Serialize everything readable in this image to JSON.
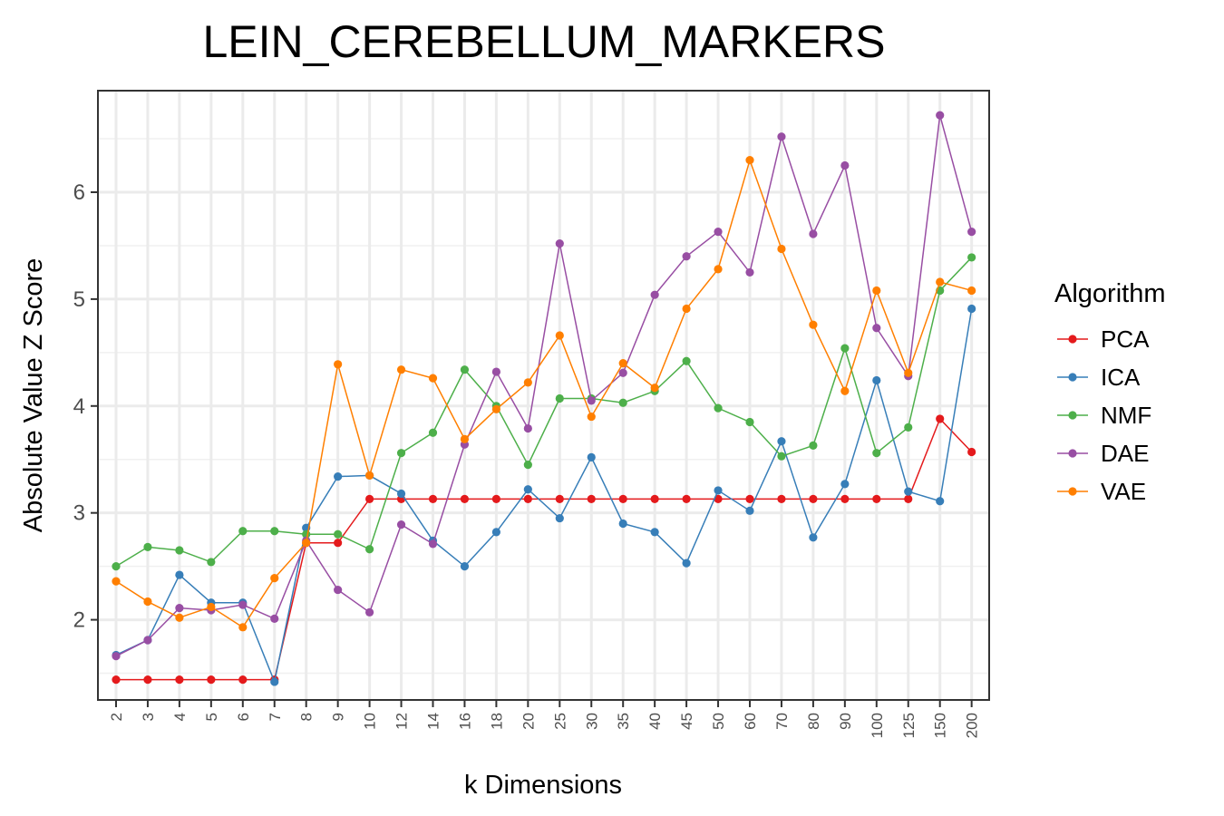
{
  "chart_data": {
    "type": "line",
    "title": "LEIN_CEREBELLUM_MARKERS",
    "xlabel": "k Dimensions",
    "ylabel": "Absolute Value Z Score",
    "categories": [
      "2",
      "3",
      "4",
      "5",
      "6",
      "7",
      "8",
      "9",
      "10",
      "12",
      "14",
      "16",
      "18",
      "20",
      "25",
      "30",
      "35",
      "40",
      "45",
      "50",
      "60",
      "70",
      "80",
      "90",
      "100",
      "125",
      "150",
      "200"
    ],
    "ylim": [
      1.25,
      6.95
    ],
    "yticks": [
      2,
      3,
      4,
      5,
      6
    ],
    "grid": true,
    "legend": {
      "title": "Algorithm",
      "position": "right"
    },
    "series": [
      {
        "name": "PCA",
        "color": "#e41a1c",
        "values": [
          1.44,
          1.44,
          1.44,
          1.44,
          1.44,
          1.44,
          2.72,
          2.72,
          3.13,
          3.13,
          3.13,
          3.13,
          3.13,
          3.13,
          3.13,
          3.13,
          3.13,
          3.13,
          3.13,
          3.13,
          3.13,
          3.13,
          3.13,
          3.13,
          3.13,
          3.13,
          3.88,
          3.57
        ]
      },
      {
        "name": "ICA",
        "color": "#377eb8",
        "values": [
          1.67,
          1.81,
          2.42,
          2.16,
          2.16,
          1.42,
          2.86,
          3.34,
          3.35,
          3.18,
          2.74,
          2.5,
          2.82,
          3.22,
          2.95,
          3.52,
          2.9,
          2.82,
          2.53,
          3.21,
          3.02,
          3.67,
          2.77,
          3.27,
          4.24,
          3.2,
          3.11,
          4.91
        ]
      },
      {
        "name": "NMF",
        "color": "#4daf4a",
        "values": [
          2.5,
          2.68,
          2.65,
          2.54,
          2.83,
          2.83,
          2.8,
          2.8,
          2.66,
          3.56,
          3.75,
          4.34,
          4.0,
          3.45,
          4.07,
          4.07,
          4.03,
          4.14,
          4.42,
          3.98,
          3.85,
          3.53,
          3.63,
          4.54,
          3.56,
          3.8,
          5.08,
          5.39
        ]
      },
      {
        "name": "DAE",
        "color": "#984ea3",
        "values": [
          1.66,
          1.81,
          2.11,
          2.09,
          2.14,
          2.01,
          2.74,
          2.28,
          2.07,
          2.89,
          2.71,
          3.64,
          4.32,
          3.79,
          5.52,
          4.05,
          4.31,
          5.04,
          5.4,
          5.63,
          5.25,
          6.52,
          5.61,
          6.25,
          4.73,
          4.28,
          6.72,
          5.63
        ]
      },
      {
        "name": "VAE",
        "color": "#ff7f00",
        "values": [
          2.36,
          2.17,
          2.02,
          2.12,
          1.93,
          2.39,
          2.72,
          4.39,
          3.35,
          4.34,
          4.26,
          3.69,
          3.97,
          4.22,
          4.66,
          3.9,
          4.4,
          4.17,
          4.91,
          5.28,
          6.3,
          5.47,
          4.76,
          4.14,
          5.08,
          4.31,
          5.16,
          5.08
        ]
      }
    ]
  }
}
